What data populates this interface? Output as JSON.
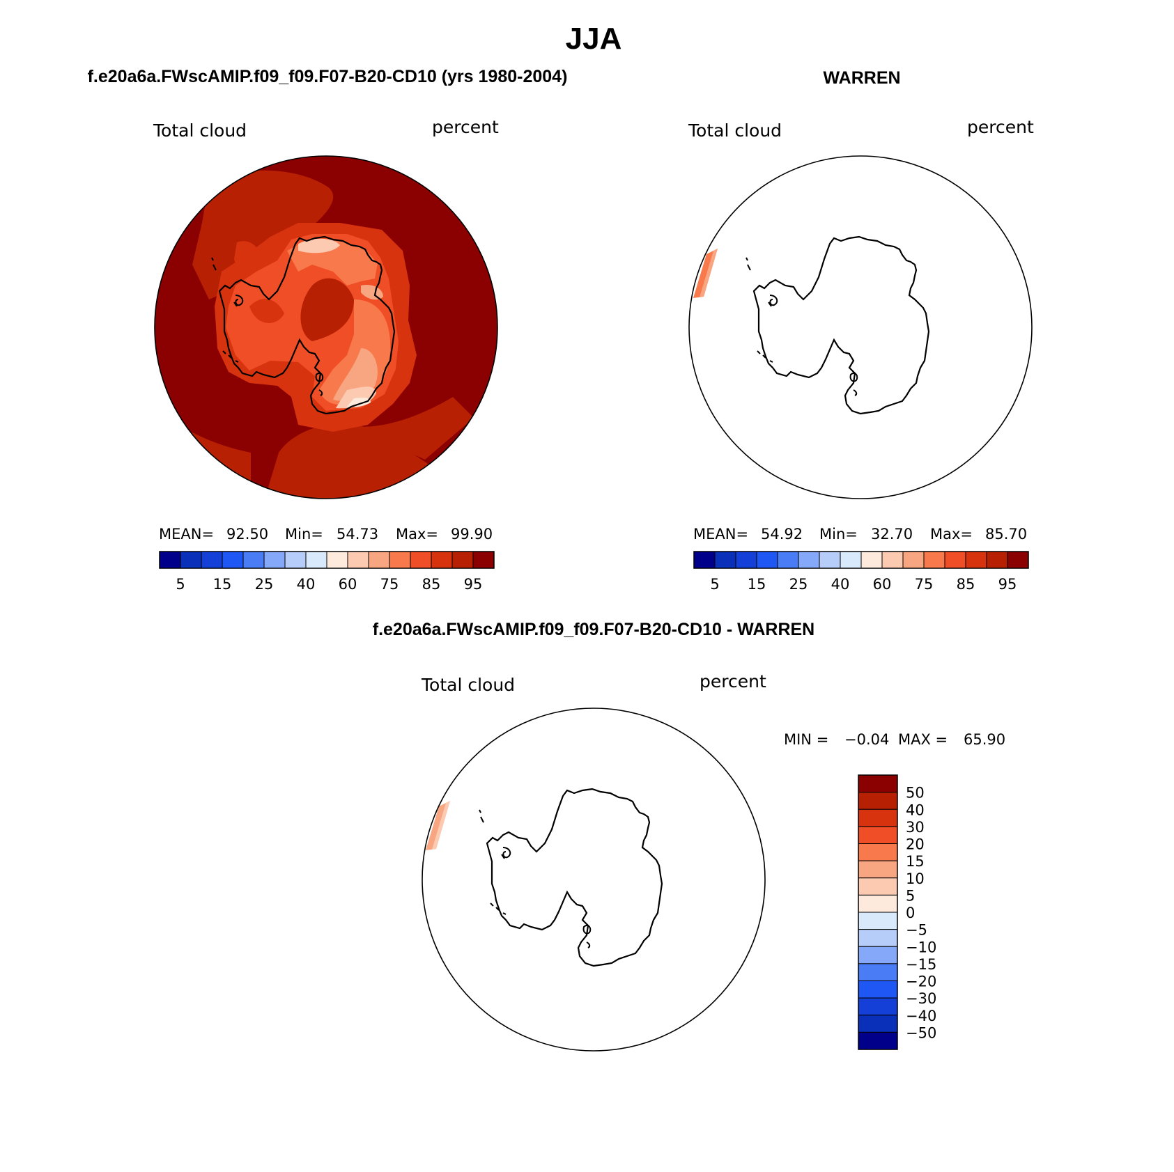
{
  "figure_title": "JJA",
  "colors": {
    "abs_palette": [
      "#00008b",
      "#0a2fb8",
      "#1440d8",
      "#1f57f5",
      "#4a7df5",
      "#86a8f8",
      "#b6cdfa",
      "#d8e9fb",
      "#fdeadc",
      "#fbcab0",
      "#f8a582",
      "#f8794b",
      "#f04e26",
      "#d8330f",
      "#b72003",
      "#8b0000"
    ],
    "diff_palette": [
      "#00008b",
      "#0a2fb8",
      "#1440d8",
      "#1f57f5",
      "#4a7df5",
      "#86a8f8",
      "#b6cdfa",
      "#d8e9fb",
      "#fdeadc",
      "#fbcab0",
      "#f8a582",
      "#f8794b",
      "#f04e26",
      "#d8330f",
      "#b72003",
      "#8b0000"
    ],
    "land_outline": "#000000",
    "map_border": "#000000"
  },
  "chart_data": [
    {
      "type": "heatmap",
      "panel_title": "f.e20a6a.FWscAMIP.f09_f09.F07-B20-CD10 (yrs 1980-2004)",
      "variable": "Total cloud",
      "units": "percent",
      "projection": "south polar stereographic",
      "stats": {
        "mean_label": "MEAN=",
        "mean": "92.50",
        "min_label": "Min=",
        "min": "54.73",
        "max_label": "Max=",
        "max": "99.90"
      },
      "color_levels": [
        5,
        10,
        15,
        20,
        25,
        30,
        40,
        50,
        60,
        70,
        75,
        80,
        85,
        90,
        95
      ],
      "colorbar_labels": [
        "5",
        "15",
        "25",
        "40",
        "60",
        "75",
        "85",
        "95"
      ],
      "field_description": "mostly >95% over ocean; lower values (55-90%) over East Antarctic plateau"
    },
    {
      "type": "heatmap",
      "panel_title": "WARREN",
      "variable": "Total cloud",
      "units": "percent",
      "projection": "south polar stereographic",
      "stats": {
        "mean_label": "MEAN=",
        "mean": "54.92",
        "min_label": "Min=",
        "min": "32.70",
        "max_label": "Max=",
        "max": "85.70"
      },
      "color_levels": [
        5,
        10,
        15,
        20,
        25,
        30,
        40,
        50,
        60,
        70,
        75,
        80,
        85,
        90,
        95
      ],
      "colorbar_labels": [
        "5",
        "15",
        "25",
        "40",
        "60",
        "75",
        "85",
        "95"
      ],
      "field_description": "data only in a narrow arc near map edge (~75-80%)"
    },
    {
      "type": "heatmap",
      "panel_title": "f.e20a6a.FWscAMIP.f09_f09.F07-B20-CD10 - WARREN",
      "variable": "Total cloud",
      "units": "percent",
      "projection": "south polar stereographic",
      "stats": {
        "min_label": "MIN =",
        "min": "−0.04",
        "max_label": "MAX =",
        "max": "65.90"
      },
      "color_levels": [
        -50,
        -40,
        -30,
        -20,
        -15,
        -10,
        -5,
        0,
        5,
        10,
        15,
        20,
        30,
        40,
        50
      ],
      "colorbar_labels": [
        "50",
        "40",
        "30",
        "20",
        "15",
        "10",
        "5",
        "0",
        "−5",
        "−10",
        "−15",
        "−20",
        "−30",
        "−40",
        "−50"
      ],
      "field_description": "difference only in a narrow arc near map edge (~15-20%)"
    }
  ]
}
